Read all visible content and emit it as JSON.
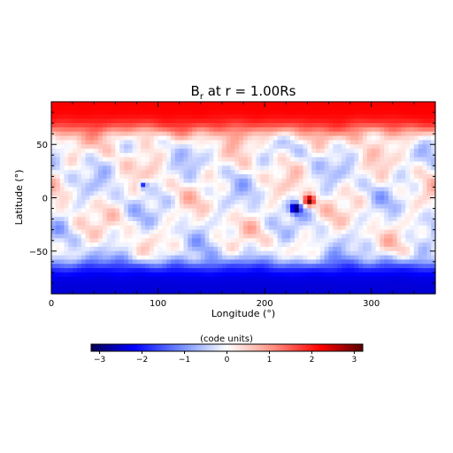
{
  "chart_data": {
    "type": "heatmap",
    "title": "B",
    "title_subscript": "r",
    "title_rest": " at r = 1.00Rs",
    "xlabel": "Longitude (°)",
    "ylabel": "Latitude (°)",
    "xlim": [
      0,
      360
    ],
    "ylim": [
      -90,
      90
    ],
    "xticks": [
      0,
      100,
      200,
      300
    ],
    "xtick_labels": [
      "0",
      "100",
      "200",
      "300"
    ],
    "yticks": [
      -50,
      0,
      50
    ],
    "ytick_labels": [
      "−50",
      "0",
      "50"
    ],
    "value_range": [
      -3.2,
      3.2
    ],
    "colormap": {
      "stops": [
        {
          "v": -3.2,
          "color": "#080055"
        },
        {
          "v": -2.2,
          "color": "#0000ff"
        },
        {
          "v": -1.0,
          "color": "#7d96ff"
        },
        {
          "v": 0.0,
          "color": "#ffffff"
        },
        {
          "v": 1.0,
          "color": "#ff9a8a"
        },
        {
          "v": 2.2,
          "color": "#ff0000"
        },
        {
          "v": 3.2,
          "color": "#5a0000"
        }
      ]
    },
    "colorbar": {
      "label": "(code units)",
      "ticks": [
        -3,
        -2,
        -1,
        0,
        1,
        2,
        3
      ],
      "tick_labels": [
        "−3",
        "−2",
        "−1",
        "0",
        "1",
        "2",
        "3"
      ]
    },
    "features": {
      "north_polar_value": 2.3,
      "south_polar_value": -2.4,
      "bipole_positive": {
        "lon": 242,
        "lat": -3,
        "value": 3.1
      },
      "bipole_negative": {
        "lon": 229,
        "lat": -10,
        "value": -3.0
      },
      "small_negative_spot": {
        "lon": 86,
        "lat": 12,
        "value": -2.1
      }
    }
  }
}
